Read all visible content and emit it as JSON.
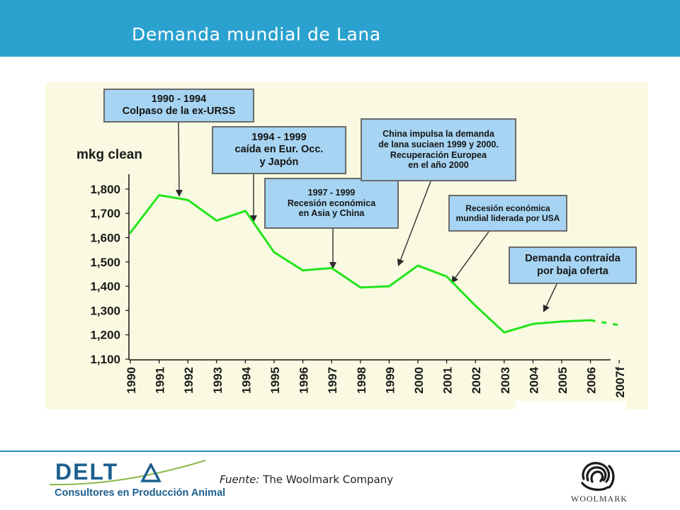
{
  "header": {
    "title": "Demanda mundial de Lana",
    "bg_color": "#2ba1cf"
  },
  "chart_data": {
    "type": "line",
    "title": "",
    "ylabel": "mkg clean",
    "xlabel": "",
    "ylim": [
      1100,
      1850
    ],
    "y_ticks": [
      "1,800",
      "1,700",
      "1,600",
      "1,500",
      "1,400",
      "1,300",
      "1,200",
      "1,100"
    ],
    "x_ticks": [
      "1990",
      "1991",
      "1992",
      "1993",
      "1994",
      "1995",
      "1996",
      "1997",
      "1998",
      "1999",
      "2000",
      "2001",
      "2002",
      "2003",
      "2004",
      "2005",
      "2006",
      "2007f"
    ],
    "series": [
      {
        "color": "#22e51a",
        "x": [
          "1990",
          "1991",
          "1992",
          "1993",
          "1994",
          "1995",
          "1996",
          "1997",
          "1998",
          "1999",
          "2000",
          "2001",
          "2002",
          "2003",
          "2004",
          "2005",
          "2006"
        ],
        "values": [
          1620,
          1775,
          1755,
          1670,
          1710,
          1540,
          1465,
          1475,
          1395,
          1400,
          1485,
          1440,
          1320,
          1210,
          1245,
          1255,
          1260
        ],
        "forecast": {
          "x": [
            "2006",
            "2007f"
          ],
          "values": [
            1260,
            1240
          ],
          "dashed": true
        }
      }
    ],
    "grid": false,
    "plot_bg": "#fafae2",
    "annotations": [
      {
        "text": "1990 - 1994\nColpaso de la ex-URSS",
        "target": "1991"
      },
      {
        "text": "1994 - 1999\ncaída en Eur. Occ.\ny Japón",
        "target": "1994"
      },
      {
        "text": "1997 - 1999\nRecesión económica\nen Asia y China",
        "target": "1997"
      },
      {
        "text": "China impulsa la demanda\nde lana suciaen 1999 y 2000.\nRecuperación Europea\nen el año 2000",
        "target": "1999"
      },
      {
        "text": "Recesión económica\nmundial liderada por USA",
        "target": "2001"
      },
      {
        "text": "Demanda contraída\npor baja oferta",
        "target": "2004"
      }
    ]
  },
  "footer": {
    "source_label": "Fuente:",
    "source_text": "The Woolmark Company",
    "delta_logo": {
      "word": "DELT",
      "subtitle": "Consultores en Producción Animal"
    },
    "woolmark_logo": {
      "word": "WOOLMARK",
      "icon": "woolmark-icon"
    }
  }
}
